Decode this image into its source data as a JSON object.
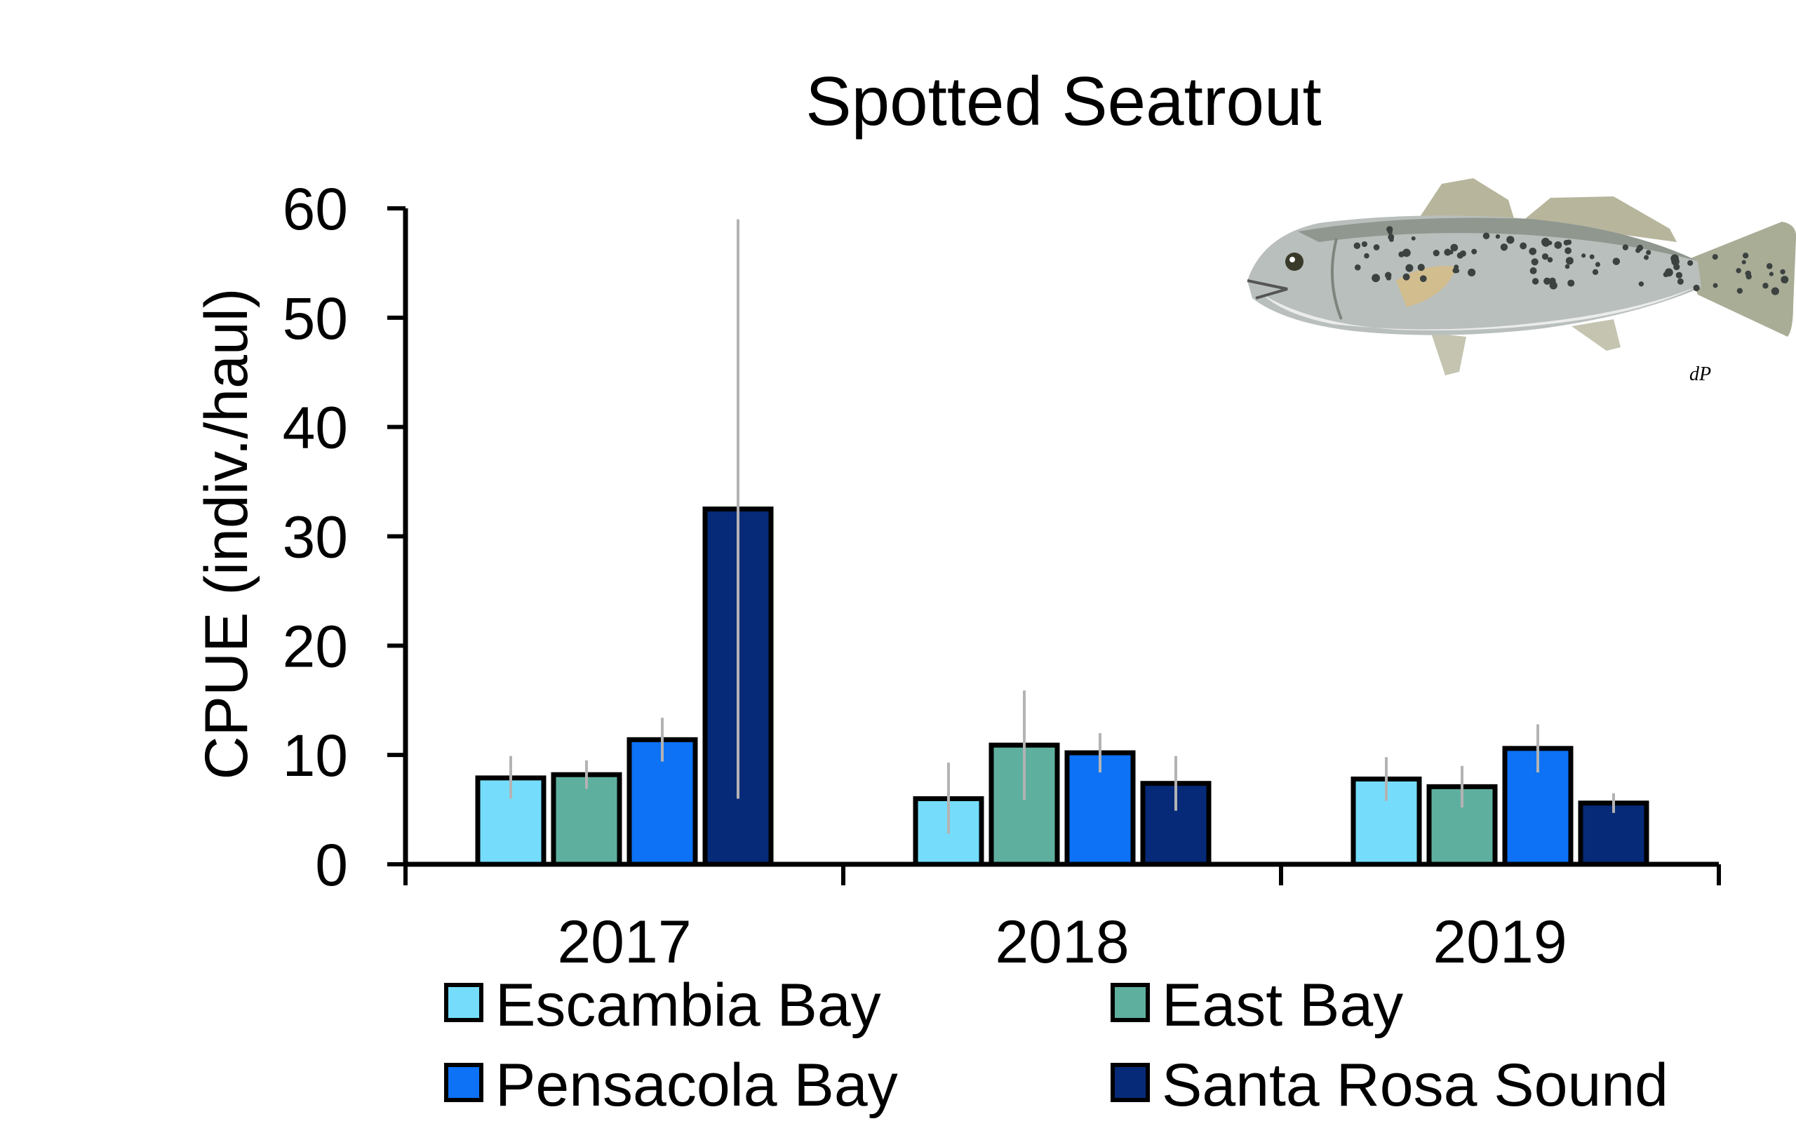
{
  "chart_data": {
    "type": "bar",
    "title": "Spotted Seatrout",
    "xlabel": "",
    "ylabel": "CPUE (indiv./haul)",
    "ylim": [
      0,
      60
    ],
    "yticks": [
      0,
      10,
      20,
      30,
      40,
      50,
      60
    ],
    "categories": [
      "2017",
      "2018",
      "2019"
    ],
    "grid": false,
    "legend_position": "bottom",
    "series": [
      {
        "name": "Escambia Bay",
        "color": "#75DDFB",
        "values": [
          7.9,
          6.0,
          7.8
        ],
        "err_low": [
          6.0,
          2.8,
          5.8
        ],
        "err_high": [
          9.9,
          9.3,
          9.8
        ]
      },
      {
        "name": "East Bay",
        "color": "#5FAF9F",
        "values": [
          8.2,
          10.9,
          7.1
        ],
        "err_low": [
          6.9,
          5.9,
          5.2
        ],
        "err_high": [
          9.5,
          15.9,
          9.0
        ]
      },
      {
        "name": "Pensacola Bay",
        "color": "#0D72F5",
        "values": [
          11.4,
          10.2,
          10.6
        ],
        "err_low": [
          9.4,
          8.4,
          8.4
        ],
        "err_high": [
          13.4,
          12.0,
          12.8
        ]
      },
      {
        "name": "Santa Rosa Sound",
        "color": "#062A78",
        "values": [
          32.5,
          7.4,
          5.6
        ],
        "err_low": [
          6.0,
          4.9,
          4.7
        ],
        "err_high": [
          59.0,
          9.9,
          6.5
        ]
      }
    ],
    "image": {
      "name": "spotted-seatrout-illustration",
      "signature_text": "dP"
    }
  }
}
